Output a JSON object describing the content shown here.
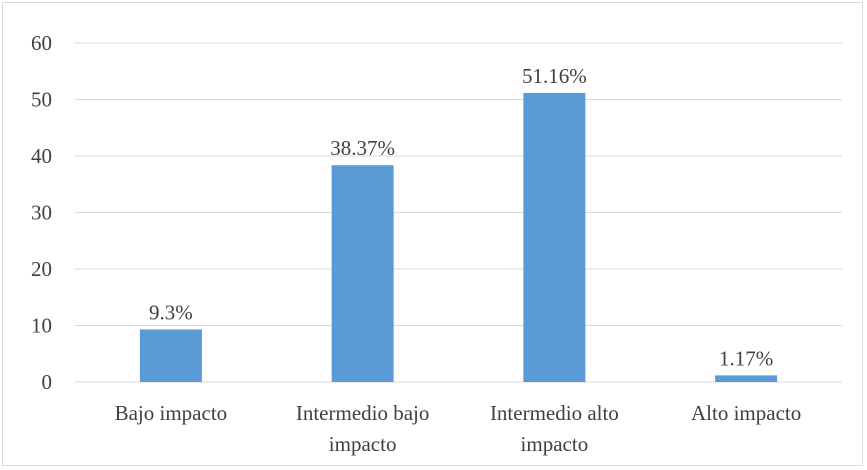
{
  "chart_data": {
    "type": "bar",
    "title": "",
    "xlabel": "",
    "ylabel": "",
    "categories": [
      [
        "Bajo impacto"
      ],
      [
        "Intermedio bajo",
        "impacto"
      ],
      [
        "Intermedio alto",
        "impacto"
      ],
      [
        "Alto impacto"
      ]
    ],
    "values": [
      9.3,
      38.37,
      51.16,
      1.17
    ],
    "data_labels": [
      "9.3%",
      "38.37%",
      "51.16%",
      "1.17%"
    ],
    "ylim": [
      0,
      60
    ],
    "yticks": [
      "0",
      "10",
      "20",
      "30",
      "40",
      "50",
      "60"
    ],
    "grid": true,
    "legend": "none",
    "colors": {
      "bar": "#5b9bd5",
      "grid": "#d9d9d9",
      "text": "#404040"
    }
  }
}
